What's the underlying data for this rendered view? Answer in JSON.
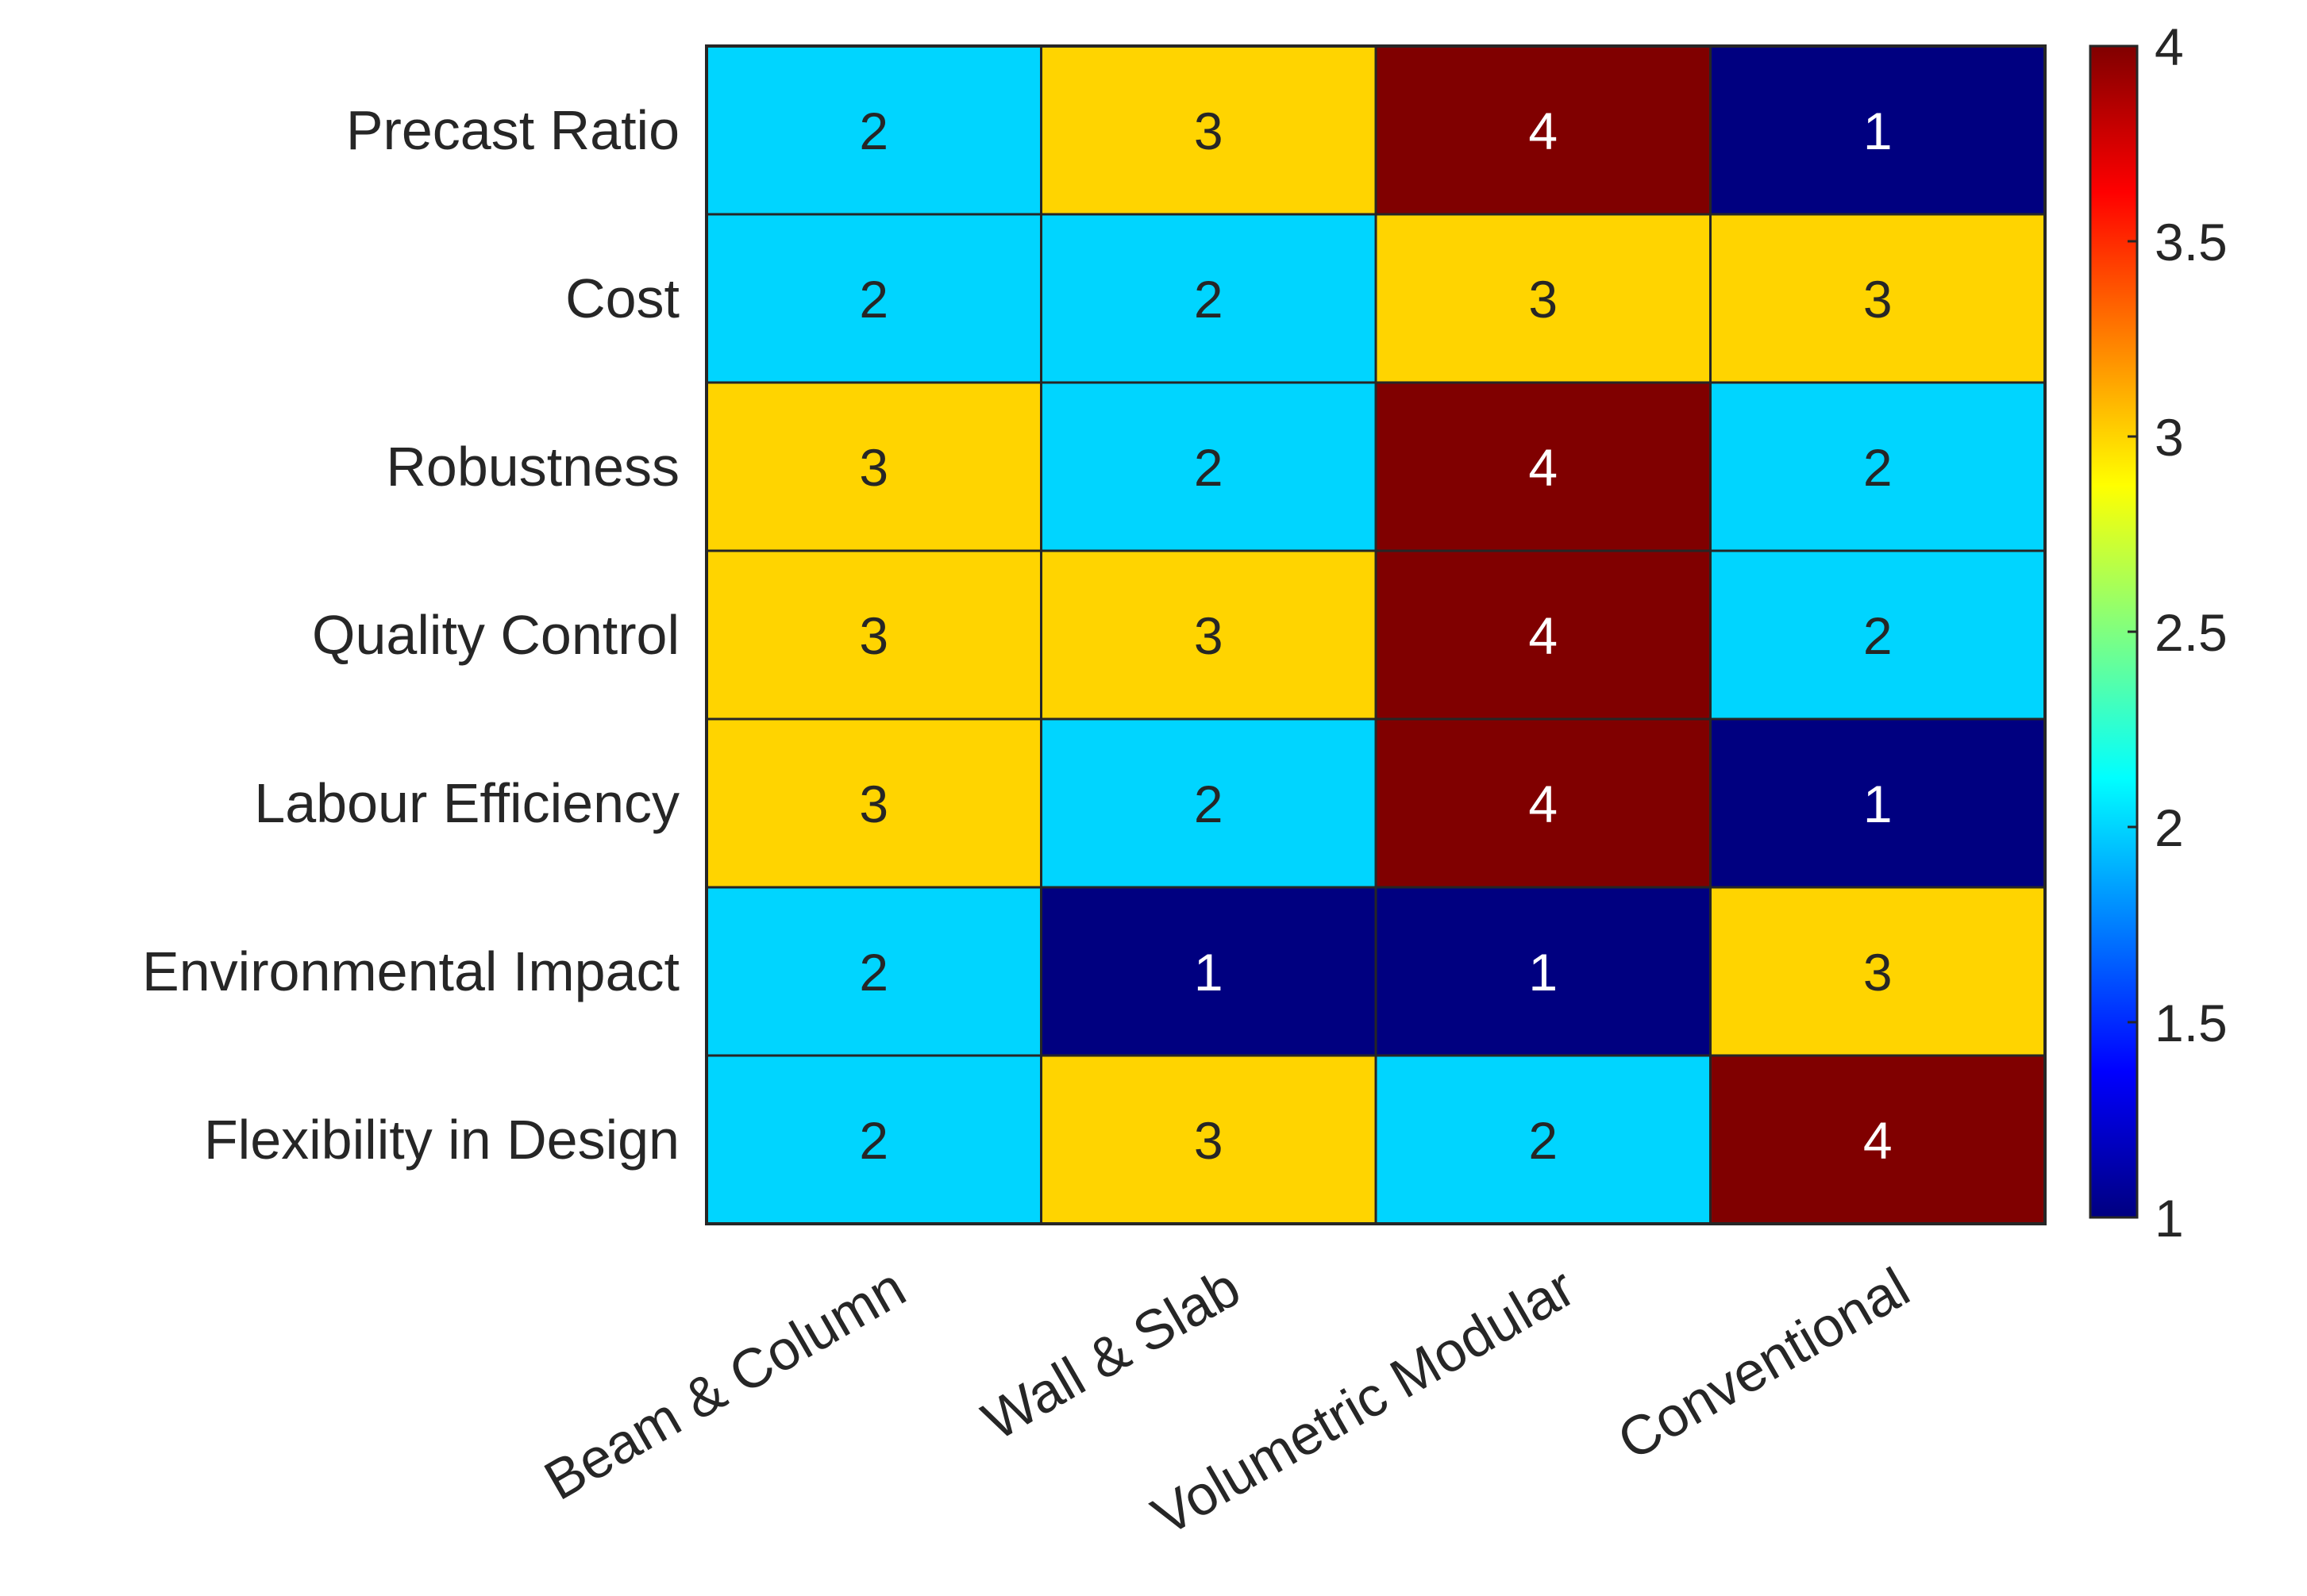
{
  "chart_data": {
    "type": "heatmap",
    "title": "",
    "xlabel": "",
    "ylabel": "",
    "columns": [
      "Beam & Column",
      "Wall & Slab",
      "Volumetric Modular",
      "Conventional"
    ],
    "rows": [
      "Precast Ratio",
      "Cost",
      "Robustness",
      "Quality Control",
      "Labour Efficiency",
      "Environmental Impact",
      "Flexibility in Design"
    ],
    "values": [
      [
        2,
        3,
        4,
        1
      ],
      [
        2,
        2,
        3,
        3
      ],
      [
        3,
        2,
        4,
        2
      ],
      [
        3,
        3,
        4,
        2
      ],
      [
        3,
        2,
        4,
        1
      ],
      [
        2,
        1,
        1,
        3
      ],
      [
        2,
        3,
        2,
        4
      ]
    ],
    "value_colors": {
      "1": "#000080",
      "2": "#00D5FF",
      "3": "#FFD400",
      "4": "#800000"
    },
    "cell_text_colors": {
      "1": "#ffffff",
      "2": "#262626",
      "3": "#262626",
      "4": "#ffffff"
    },
    "colorbar": {
      "range": [
        1,
        4
      ],
      "tick_values": [
        1,
        1.5,
        2,
        2.5,
        3,
        3.5,
        4
      ],
      "tick_labels": [
        "1",
        "1.5",
        "2",
        "2.5",
        "3",
        "3.5",
        "4"
      ],
      "colormap": "jet"
    },
    "label_color": "#262626",
    "grid_line_color": "#262626"
  }
}
